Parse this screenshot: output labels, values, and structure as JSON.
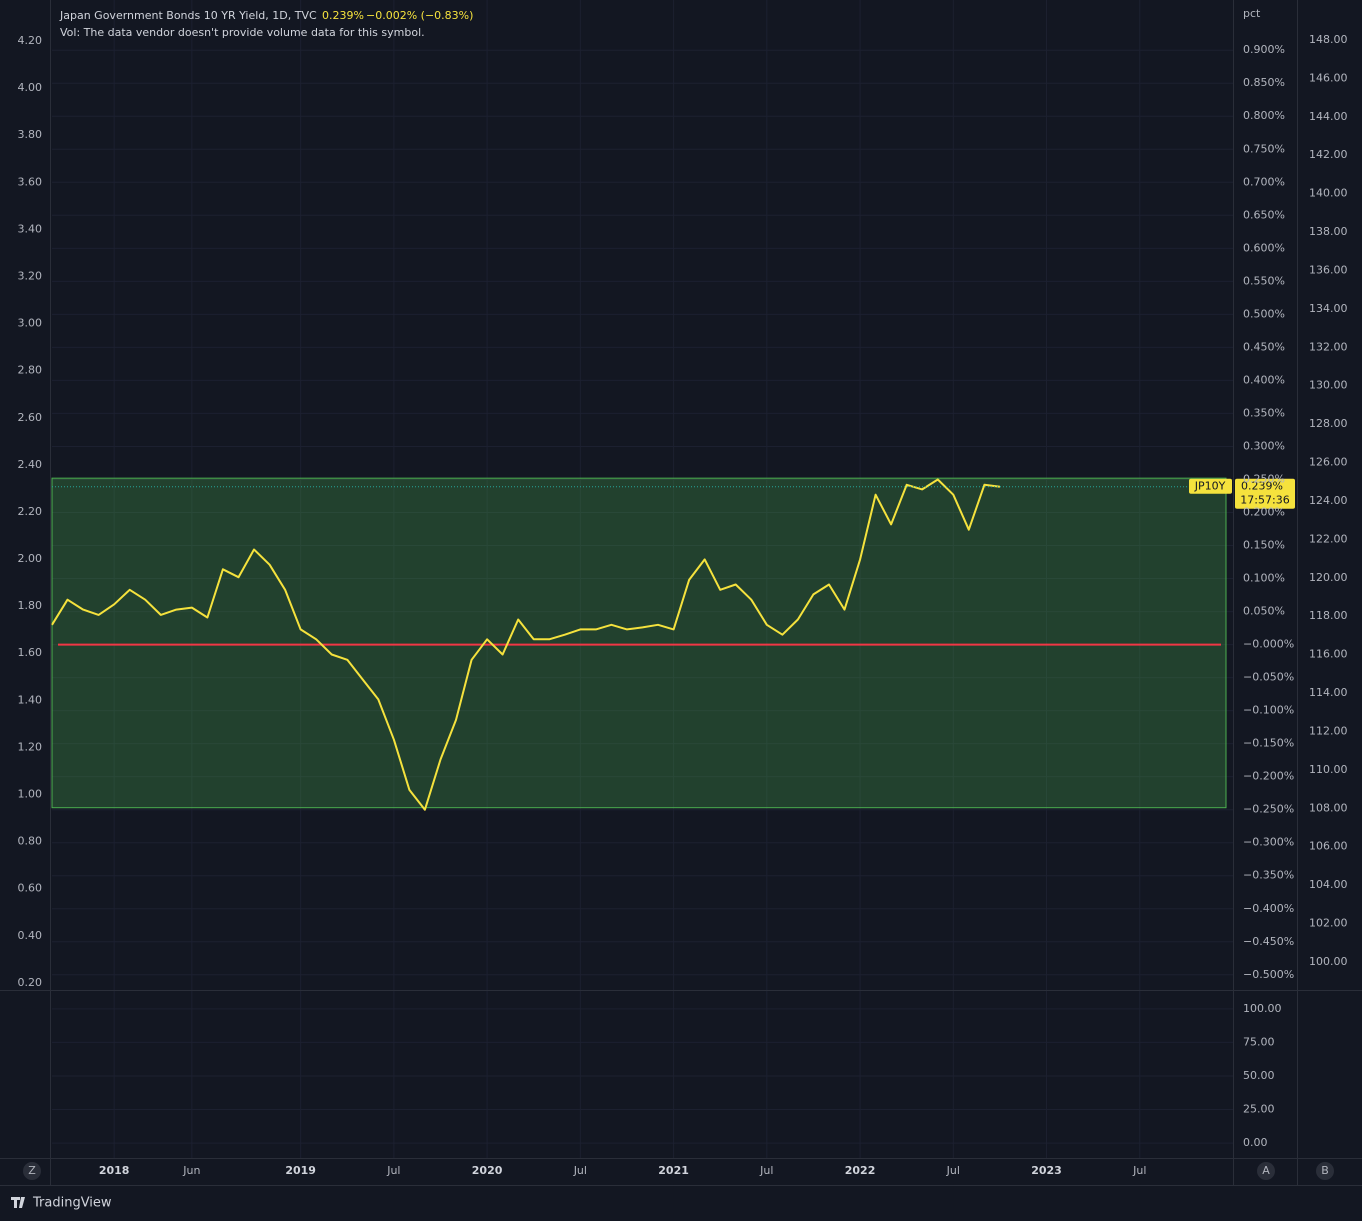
{
  "header": {
    "symbol": "Japan Government Bonds 10 YR Yield, 1D, TVC",
    "last": "0.239%",
    "change": "−0.002% (−0.83%)",
    "volume_note": "Vol: The data vendor doesn't provide volume data for this symbol."
  },
  "chart_data": [
    {
      "type": "line",
      "x": [
        "2017-09",
        "2017-10",
        "2017-11",
        "2017-12",
        "2018-01",
        "2018-02",
        "2018-03",
        "2018-04",
        "2018-05",
        "2018-06",
        "2018-07",
        "2018-08",
        "2018-09",
        "2018-10",
        "2018-11",
        "2018-12",
        "2019-01",
        "2019-02",
        "2019-03",
        "2019-04",
        "2019-05",
        "2019-06",
        "2019-07",
        "2019-08",
        "2019-09",
        "2019-10",
        "2019-11",
        "2019-12",
        "2020-01",
        "2020-02",
        "2020-03",
        "2020-04",
        "2020-05",
        "2020-06",
        "2020-07",
        "2020-08",
        "2020-09",
        "2020-10",
        "2020-11",
        "2020-12",
        "2021-01",
        "2021-02",
        "2021-03",
        "2021-04",
        "2021-05",
        "2021-06",
        "2021-07",
        "2021-08",
        "2021-09",
        "2021-10",
        "2021-11",
        "2021-12",
        "2022-01",
        "2022-02",
        "2022-03",
        "2022-04",
        "2022-05",
        "2022-06",
        "2022-07",
        "2022-08",
        "2022-09",
        "2022-10"
      ],
      "series": [
        {
          "name": "JP10Y",
          "color": "#f5e23d",
          "values": [
            0.03,
            0.068,
            0.053,
            0.045,
            0.061,
            0.083,
            0.068,
            0.045,
            0.053,
            0.056,
            0.041,
            0.114,
            0.102,
            0.144,
            0.121,
            0.083,
            0.023,
            0.008,
            -0.015,
            -0.023,
            -0.053,
            -0.083,
            -0.144,
            -0.22,
            -0.25,
            -0.174,
            -0.114,
            -0.023,
            0.008,
            -0.015,
            0.038,
            0.008,
            0.008,
            0.015,
            0.023,
            0.023,
            0.03,
            0.023,
            0.026,
            0.03,
            0.023,
            0.098,
            0.129,
            0.083,
            0.091,
            0.068,
            0.03,
            0.015,
            0.038,
            0.076,
            0.091,
            0.053,
            0.129,
            0.227,
            0.182,
            0.242,
            0.235,
            0.25,
            0.227,
            0.174,
            0.242,
            0.239
          ]
        }
      ],
      "xlim": [
        "2017-09",
        "2024-01"
      ],
      "xticks": [
        {
          "value": "2018-01",
          "label": "2018"
        },
        {
          "value": "2018-06",
          "label": "Jun"
        },
        {
          "value": "2019-01",
          "label": "2019"
        },
        {
          "value": "2019-07",
          "label": "Jul"
        },
        {
          "value": "2020-01",
          "label": "2020"
        },
        {
          "value": "2020-07",
          "label": "Jul"
        },
        {
          "value": "2021-01",
          "label": "2021"
        },
        {
          "value": "2021-07",
          "label": "Jul"
        },
        {
          "value": "2022-01",
          "label": "2022"
        },
        {
          "value": "2022-07",
          "label": "Jul"
        },
        {
          "value": "2023-01",
          "label": "2023"
        },
        {
          "value": "2023-07",
          "label": "Jul"
        }
      ],
      "y_unit": "pct",
      "ylim": [
        -0.523,
        0.976
      ],
      "yticks": [
        {
          "value": 0.9,
          "label": "0.900%"
        },
        {
          "value": 0.85,
          "label": "0.850%"
        },
        {
          "value": 0.8,
          "label": "0.800%"
        },
        {
          "value": 0.75,
          "label": "0.750%"
        },
        {
          "value": 0.7,
          "label": "0.700%"
        },
        {
          "value": 0.65,
          "label": "0.650%"
        },
        {
          "value": 0.6,
          "label": "0.600%"
        },
        {
          "value": 0.55,
          "label": "0.550%"
        },
        {
          "value": 0.5,
          "label": "0.500%"
        },
        {
          "value": 0.45,
          "label": "0.450%"
        },
        {
          "value": 0.4,
          "label": "0.400%"
        },
        {
          "value": 0.35,
          "label": "0.350%"
        },
        {
          "value": 0.3,
          "label": "0.300%"
        },
        {
          "value": 0.25,
          "label": "0.250%"
        },
        {
          "value": 0.2,
          "label": "0.200%"
        },
        {
          "value": 0.15,
          "label": "0.150%"
        },
        {
          "value": 0.1,
          "label": "0.100%"
        },
        {
          "value": 0.05,
          "label": "0.050%"
        },
        {
          "value": 0,
          "label": "−0.000%"
        },
        {
          "value": -0.05,
          "label": "−0.050%"
        },
        {
          "value": -0.1,
          "label": "−0.100%"
        },
        {
          "value": -0.15,
          "label": "−0.150%"
        },
        {
          "value": -0.2,
          "label": "−0.200%"
        },
        {
          "value": -0.25,
          "label": "−0.250%"
        },
        {
          "value": -0.3,
          "label": "−0.300%"
        },
        {
          "value": -0.35,
          "label": "−0.350%"
        },
        {
          "value": -0.4,
          "label": "−0.400%"
        },
        {
          "value": -0.45,
          "label": "−0.450%"
        },
        {
          "value": -0.5,
          "label": "−0.500%"
        }
      ],
      "y_left_lim": [
        0.17,
        4.374
      ],
      "y_left_ticks": [
        {
          "value": 4.2,
          "label": "4.20"
        },
        {
          "value": 4.0,
          "label": "4.00"
        },
        {
          "value": 3.8,
          "label": "3.80"
        },
        {
          "value": 3.6,
          "label": "3.60"
        },
        {
          "value": 3.4,
          "label": "3.40"
        },
        {
          "value": 3.2,
          "label": "3.20"
        },
        {
          "value": 3.0,
          "label": "3.00"
        },
        {
          "value": 2.8,
          "label": "2.80"
        },
        {
          "value": 2.6,
          "label": "2.60"
        },
        {
          "value": 2.4,
          "label": "2.40"
        },
        {
          "value": 2.2,
          "label": "2.20"
        },
        {
          "value": 2.0,
          "label": "2.00"
        },
        {
          "value": 1.8,
          "label": "1.80"
        },
        {
          "value": 1.6,
          "label": "1.60"
        },
        {
          "value": 1.4,
          "label": "1.40"
        },
        {
          "value": 1.2,
          "label": "1.20"
        },
        {
          "value": 1.0,
          "label": "1.00"
        },
        {
          "value": 0.8,
          "label": "0.80"
        },
        {
          "value": 0.6,
          "label": "0.60"
        },
        {
          "value": 0.4,
          "label": "0.40"
        },
        {
          "value": 0.2,
          "label": "0.20"
        }
      ],
      "y2lim": [
        98.54,
        150.08
      ],
      "y2ticks": [
        {
          "value": 148,
          "label": "148.00"
        },
        {
          "value": 146,
          "label": "146.00"
        },
        {
          "value": 144,
          "label": "144.00"
        },
        {
          "value": 142,
          "label": "142.00"
        },
        {
          "value": 140,
          "label": "140.00"
        },
        {
          "value": 138,
          "label": "138.00"
        },
        {
          "value": 136,
          "label": "136.00"
        },
        {
          "value": 134,
          "label": "134.00"
        },
        {
          "value": 132,
          "label": "132.00"
        },
        {
          "value": 130,
          "label": "130.00"
        },
        {
          "value": 128,
          "label": "128.00"
        },
        {
          "value": 126,
          "label": "126.00"
        },
        {
          "value": 124,
          "label": "124.00"
        },
        {
          "value": 122,
          "label": "122.00"
        },
        {
          "value": 120,
          "label": "120.00"
        },
        {
          "value": 118,
          "label": "118.00"
        },
        {
          "value": 116,
          "label": "116.00"
        },
        {
          "value": 114,
          "label": "114.00"
        },
        {
          "value": 112,
          "label": "112.00"
        },
        {
          "value": 110,
          "label": "110.00"
        },
        {
          "value": 108,
          "label": "108.00"
        },
        {
          "value": 106,
          "label": "106.00"
        },
        {
          "value": 104,
          "label": "104.00"
        },
        {
          "value": 102,
          "label": "102.00"
        },
        {
          "value": 100,
          "label": "100.00"
        }
      ],
      "range_box": {
        "from": -0.247,
        "to": 0.252,
        "color": "#4caf50"
      },
      "hline": {
        "value": 0,
        "color": "#f23645"
      },
      "grid": true
    },
    {
      "type": "pane",
      "ylim": [
        -11.1,
        113.3
      ],
      "yticks": [
        {
          "value": 100,
          "label": "100.00"
        },
        {
          "value": 75,
          "label": "75.00"
        },
        {
          "value": 50,
          "label": "50.00"
        },
        {
          "value": 25,
          "label": "25.00"
        },
        {
          "value": 0,
          "label": "0.00"
        }
      ]
    }
  ],
  "price_tag": {
    "value": "0.239%",
    "countdown": "17:57:36"
  },
  "toolbar": {
    "zoom": "Z",
    "auto": "A",
    "b": "B",
    "brand": "TradingView"
  }
}
